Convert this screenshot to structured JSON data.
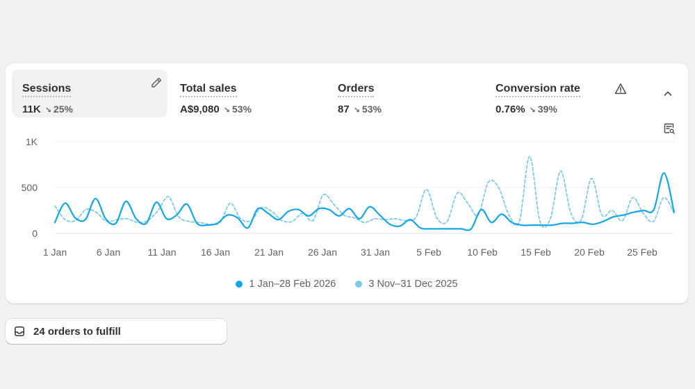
{
  "metrics": [
    {
      "label": "Sessions",
      "value": "11K",
      "change": "25%",
      "direction": "down",
      "active": true
    },
    {
      "label": "Total sales",
      "value": "A$9,080",
      "change": "53%",
      "direction": "down",
      "active": false
    },
    {
      "label": "Orders",
      "value": "87",
      "change": "53%",
      "direction": "down",
      "active": false
    },
    {
      "label": "Conversion rate",
      "value": "0.76%",
      "change": "39%",
      "direction": "down",
      "active": false
    }
  ],
  "icons": {
    "edit": "pencil-icon",
    "warning": "warning-triangle-icon",
    "collapse": "chevron-up-icon",
    "report": "report-search-icon",
    "orders": "inbox-tray-icon"
  },
  "chart_data": {
    "type": "line",
    "ylim": [
      0,
      1000
    ],
    "yticks": [
      0,
      500,
      "1K"
    ],
    "ytick_labels": [
      "0",
      "500",
      "1K"
    ],
    "xtick_labels": [
      "1 Jan",
      "6 Jan",
      "11 Jan",
      "16 Jan",
      "21 Jan",
      "26 Jan",
      "31 Jan",
      "5 Feb",
      "10 Feb",
      "15 Feb",
      "20 Feb",
      "25 Feb"
    ],
    "grid": true,
    "series": [
      {
        "name": "1 Jan–28 Feb 2026",
        "color": "#13a5e8",
        "style": "solid",
        "values": [
          120,
          330,
          170,
          150,
          380,
          160,
          110,
          350,
          160,
          110,
          340,
          160,
          200,
          320,
          110,
          90,
          110,
          200,
          170,
          60,
          270,
          220,
          150,
          240,
          260,
          190,
          270,
          260,
          190,
          270,
          160,
          290,
          200,
          100,
          80,
          150,
          60,
          50,
          50,
          50,
          50,
          50,
          260,
          120,
          210,
          120,
          90,
          90,
          90,
          90,
          110,
          110,
          120,
          100,
          130,
          180,
          200,
          230,
          250,
          260,
          660,
          230
        ]
      },
      {
        "name": "3 Nov–31 Dec 2025",
        "color": "#7dc9ec",
        "style": "dashed",
        "values": [
          300,
          150,
          140,
          260,
          230,
          130,
          150,
          160,
          120,
          140,
          250,
          400,
          180,
          130,
          120,
          100,
          120,
          330,
          160,
          140,
          280,
          240,
          140,
          130,
          220,
          140,
          420,
          320,
          200,
          170,
          120,
          160,
          150,
          160,
          140,
          180,
          480,
          170,
          130,
          440,
          330,
          200,
          560,
          500,
          200,
          130,
          840,
          130,
          160,
          680,
          220,
          150,
          600,
          200,
          250,
          140,
          390,
          220,
          130,
          390,
          220
        ]
      }
    ]
  },
  "orders": {
    "label": "24 orders to fulfill"
  }
}
